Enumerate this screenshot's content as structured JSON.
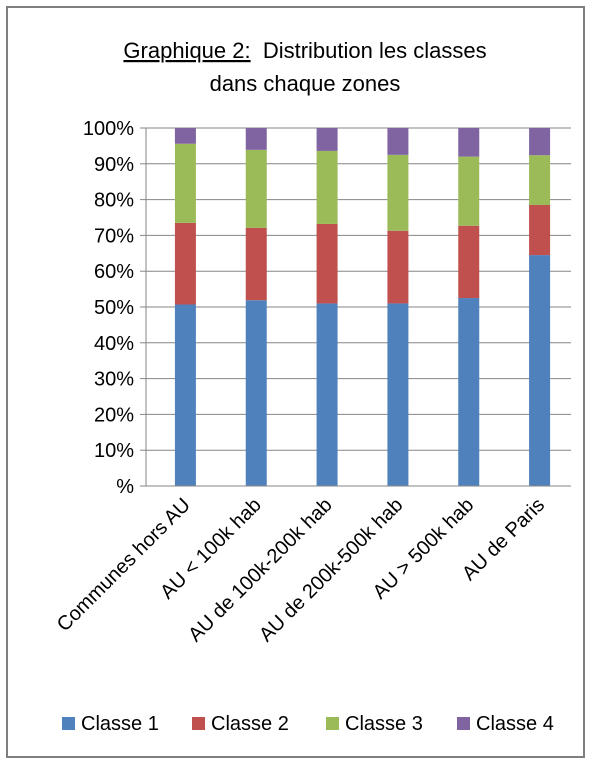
{
  "chart_data": {
    "type": "bar",
    "stacked": true,
    "percent": true,
    "title_prefix": "Graphique 2:",
    "title_rest": "  Distribution les classes",
    "title_line2": "dans chaque zones",
    "categories": [
      "Communes hors AU",
      "AU < 100k hab",
      "AU de 100k-200k hab",
      "AU de 200k-500k hab",
      "AU > 500k hab",
      "AU de Paris"
    ],
    "y_ticks": [
      "%",
      "10%",
      "20%",
      "30%",
      "40%",
      "50%",
      "60%",
      "70%",
      "80%",
      "90%",
      "100%"
    ],
    "ylim": [
      0,
      100
    ],
    "grid": true,
    "legend_position": "bottom",
    "series": [
      {
        "name": "Classe 1",
        "color": "#4f81bd",
        "values": [
          50.7,
          51.9,
          51.0,
          51.0,
          52.5,
          64.5
        ]
      },
      {
        "name": "Classe 2",
        "color": "#c0504d",
        "values": [
          22.8,
          20.2,
          22.2,
          20.3,
          20.2,
          14.0
        ]
      },
      {
        "name": "Classe 3",
        "color": "#9bbb59",
        "values": [
          22.1,
          21.8,
          20.4,
          21.2,
          19.3,
          13.9
        ]
      },
      {
        "name": "Classe 4",
        "color": "#8064a2",
        "values": [
          4.4,
          6.1,
          6.4,
          7.5,
          8.0,
          7.6
        ]
      }
    ]
  }
}
